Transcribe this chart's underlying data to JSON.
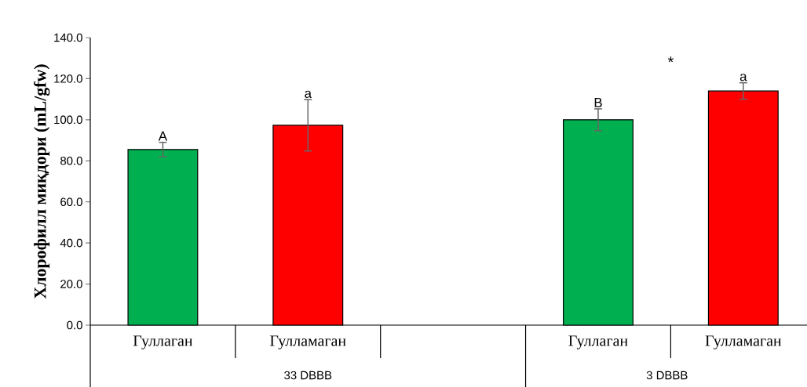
{
  "chart_data": {
    "type": "bar",
    "ylabel": "Хлорофилл миқдори (mL/gfw)",
    "categories": [
      "Гуллаган",
      "Гулламаган",
      null,
      "Гуллаган",
      "Гулламаган"
    ],
    "values": [
      85.5,
      97.3,
      null,
      100,
      114
    ],
    "errors": [
      3.5,
      12.5,
      null,
      5.3,
      4
    ],
    "colors": [
      "#00b050",
      "#ff0000",
      "#00b050",
      "#00b050",
      "#ff0000"
    ],
    "value_labels": [
      "A",
      "a",
      null,
      "B",
      "a"
    ],
    "annotations": [
      "*",
      "33 DBBB",
      "3 DBBB"
    ],
    "ylim": [
      0,
      140
    ],
    "yticks": [
      {
        "value": 0,
        "label": "0.0"
      },
      {
        "value": 20,
        "label": "20.0"
      },
      {
        "value": 40,
        "label": "40.0"
      },
      {
        "value": 60,
        "label": "60.0"
      },
      {
        "value": 80,
        "label": "80.0"
      },
      {
        "value": 100,
        "label": "100.0"
      },
      {
        "value": 120,
        "label": "120.0"
      },
      {
        "value": 140,
        "label": "140.0"
      }
    ]
  }
}
